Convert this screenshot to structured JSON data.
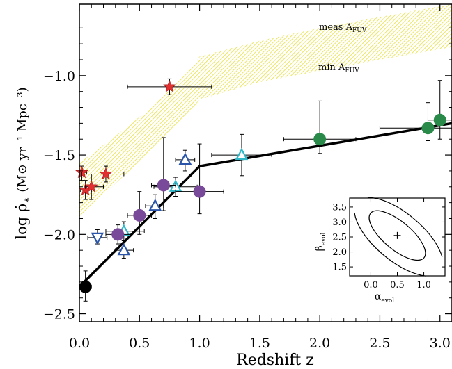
{
  "chart_data": {
    "type": "scatter",
    "title": "",
    "xlabel": "Redshift z",
    "ylabel_main": "log ρ̇",
    "ylabel_sub": "∗",
    "ylabel_units": "(M⊙ yr⁻¹ Mpc⁻³)",
    "xlim": [
      0.0,
      3.1
    ],
    "ylim": [
      -2.55,
      -0.55
    ],
    "x_ticks": [
      0.0,
      0.5,
      1.0,
      1.5,
      2.0,
      2.5,
      3.0
    ],
    "x_tick_labels": [
      "0.0",
      "0.5",
      "1.0",
      "1.5",
      "2.0",
      "2.5",
      "3.0"
    ],
    "y_ticks": [
      -2.5,
      -2.0,
      -1.5,
      -1.0
    ],
    "y_tick_labels": [
      "−2.5",
      "−2.0",
      "−1.5",
      "−1.0"
    ],
    "band": {
      "color": "#e8e03a",
      "upper_label": "meas A",
      "upper_label_sub": "FUV",
      "lower_label": "min A",
      "lower_label_sub": "FUV",
      "x": [
        0.0,
        0.3,
        0.6,
        0.9,
        1.0,
        1.5,
        2.0,
        2.5,
        3.1
      ],
      "upper": [
        -1.55,
        -1.38,
        -1.2,
        -0.98,
        -0.88,
        -0.78,
        -0.7,
        -0.63,
        -0.55
      ],
      "lower": [
        -1.9,
        -1.68,
        -1.47,
        -1.25,
        -1.15,
        -1.04,
        -0.97,
        -0.9,
        -0.82
      ]
    },
    "fit_line": {
      "color": "#000000",
      "x": [
        0.0,
        1.0,
        3.1
      ],
      "y": [
        -2.33,
        -1.57,
        -1.3
      ]
    },
    "series": [
      {
        "marker": "star",
        "color": "#e03030",
        "points": [
          {
            "x": 0.02,
            "y": -1.61,
            "xlo": 0.0,
            "xhi": 0.06,
            "ylo": -1.66,
            "yhi": -1.57
          },
          {
            "x": 0.05,
            "y": -1.72,
            "xlo": 0.01,
            "xhi": 0.1,
            "ylo": -1.78,
            "yhi": -1.66
          },
          {
            "x": 0.1,
            "y": -1.7,
            "xlo": 0.05,
            "xhi": 0.2,
            "ylo": -1.78,
            "yhi": -1.62
          },
          {
            "x": 0.22,
            "y": -1.62,
            "xlo": 0.02,
            "xhi": 0.37,
            "ylo": -1.67,
            "yhi": -1.57
          },
          {
            "x": 0.75,
            "y": -1.07,
            "xlo": 0.4,
            "xhi": 1.1,
            "ylo": -1.12,
            "yhi": -1.02
          }
        ]
      },
      {
        "marker": "circle-filled",
        "color": "#000000",
        "points": [
          {
            "x": 0.05,
            "y": -2.33,
            "xlo": 0.01,
            "xhi": 0.1,
            "ylo": -2.42,
            "yhi": -2.23
          }
        ]
      },
      {
        "marker": "triangle-down-open",
        "color": "#2a55a8",
        "points": [
          {
            "x": 0.15,
            "y": -2.02,
            "xlo": 0.07,
            "xhi": 0.23,
            "ylo": -2.06,
            "yhi": -1.97
          }
        ]
      },
      {
        "marker": "triangle-up-open",
        "color": "#2a55a8",
        "points": [
          {
            "x": 0.37,
            "y": -2.1,
            "xlo": 0.3,
            "xhi": 0.45,
            "ylo": -2.15,
            "yhi": -2.04
          },
          {
            "x": 0.63,
            "y": -1.82,
            "xlo": 0.55,
            "xhi": 0.7,
            "ylo": -1.9,
            "yhi": -1.75
          },
          {
            "x": 0.88,
            "y": -1.53,
            "xlo": 0.8,
            "xhi": 0.96,
            "ylo": -1.6,
            "yhi": -1.47
          }
        ]
      },
      {
        "marker": "triangle-up-open",
        "color": "#30b8c8",
        "points": [
          {
            "x": 0.37,
            "y": -1.98,
            "xlo": 0.22,
            "xhi": 0.54,
            "ylo": -2.04,
            "yhi": -1.92
          },
          {
            "x": 0.8,
            "y": -1.7,
            "xlo": 0.62,
            "xhi": 0.98,
            "ylo": -1.76,
            "yhi": -1.64
          },
          {
            "x": 1.35,
            "y": -1.5,
            "xlo": 1.1,
            "xhi": 1.6,
            "ylo": -1.63,
            "yhi": -1.37
          }
        ]
      },
      {
        "marker": "circle-filled",
        "color": "#7a4a9a",
        "points": [
          {
            "x": 0.32,
            "y": -2.0,
            "xlo": 0.22,
            "xhi": 0.42,
            "ylo": -2.06,
            "yhi": -1.94
          },
          {
            "x": 0.5,
            "y": -1.88,
            "xlo": 0.4,
            "xhi": 0.6,
            "ylo": -2.0,
            "yhi": -1.73
          },
          {
            "x": 0.7,
            "y": -1.69,
            "xlo": 0.6,
            "xhi": 0.8,
            "ylo": -1.85,
            "yhi": -1.39
          },
          {
            "x": 1.0,
            "y": -1.73,
            "xlo": 0.8,
            "xhi": 1.2,
            "ylo": -1.87,
            "yhi": -1.43
          }
        ]
      },
      {
        "marker": "circle-filled",
        "color": "#2a8a4a",
        "points": [
          {
            "x": 2.0,
            "y": -1.4,
            "xlo": 1.7,
            "xhi": 2.3,
            "ylo": -1.49,
            "yhi": -1.16
          },
          {
            "x": 2.9,
            "y": -1.33,
            "xlo": 2.5,
            "xhi": 3.1,
            "ylo": -1.41,
            "yhi": -1.17
          },
          {
            "x": 3.0,
            "y": -1.28,
            "xlo": 2.9,
            "xhi": 3.1,
            "ylo": -1.4,
            "yhi": -1.03
          }
        ]
      }
    ],
    "inset": {
      "xlabel_main": "α",
      "xlabel_sub": "evol",
      "ylabel_main": "β",
      "ylabel_sub": "evol",
      "xlim": [
        -0.4,
        1.4
      ],
      "ylim": [
        1.2,
        3.8
      ],
      "x_ticks": [
        0.0,
        0.5,
        1.0
      ],
      "x_tick_labels": [
        "0.0",
        "0.5",
        "1.0"
      ],
      "y_ticks": [
        1.5,
        2.0,
        2.5,
        3.0,
        3.5
      ],
      "y_tick_labels": [
        "1.5",
        "2.0",
        "2.5",
        "3.0",
        "3.5"
      ],
      "best_fit": {
        "x": 0.5,
        "y": 2.55
      }
    }
  }
}
